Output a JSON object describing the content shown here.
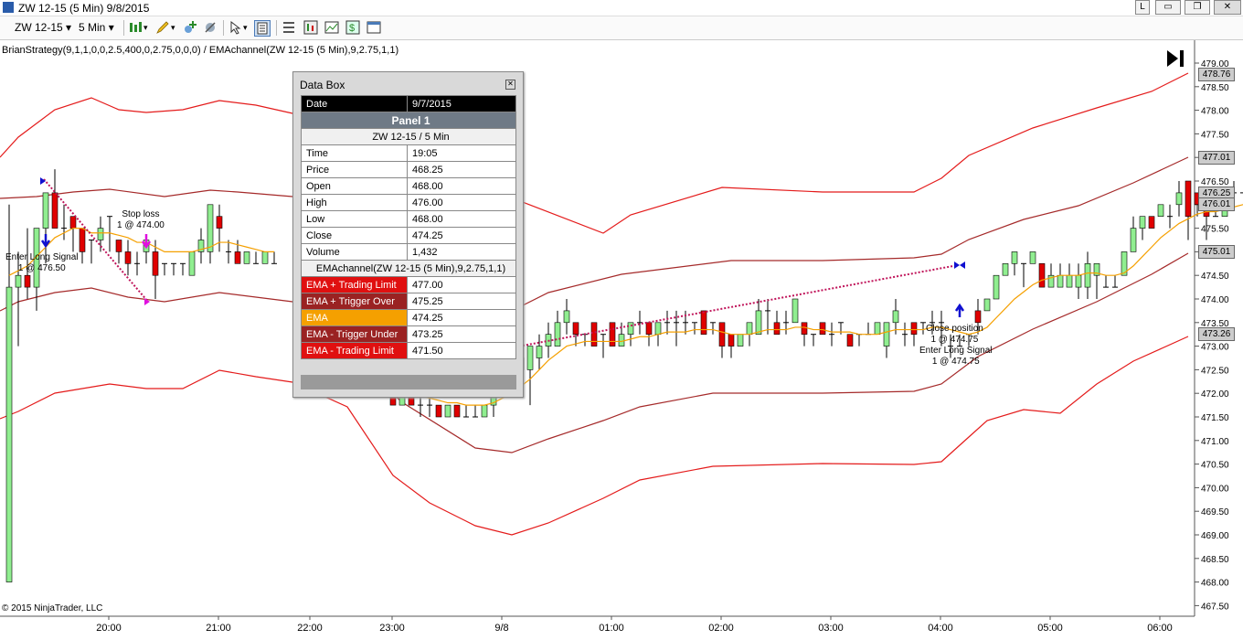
{
  "window": {
    "title": "ZW 12-15 (5 Min)  9/8/2015",
    "buttons": [
      "L",
      "▭",
      "❐",
      "✕"
    ]
  },
  "toolbar": {
    "instrument": "ZW 12-15",
    "interval": "5 Min"
  },
  "strategy_label": "BrianStrategy(9,1,1,0,0,2.5,400,0,2.75,0,0,0) / EMAchannel(ZW 12-15 (5 Min),9,2.75,1,1)",
  "copyright": "© 2015 NinjaTrader, LLC",
  "price_axis": {
    "ticks": [
      "479.00",
      "478.50",
      "478.00",
      "477.50",
      "477.00",
      "476.50",
      "476.00",
      "475.50",
      "475.00",
      "474.50",
      "474.00",
      "473.50",
      "473.00",
      "472.50",
      "472.00",
      "471.50",
      "471.00",
      "470.50",
      "470.00",
      "469.50",
      "469.00",
      "468.50",
      "468.00",
      "467.50"
    ],
    "tags": [
      {
        "label": "478.76",
        "price": 478.76
      },
      {
        "label": "477.01",
        "price": 477.01
      },
      {
        "label": "476.25",
        "price": 476.25
      },
      {
        "label": "476.01",
        "price": 476.01
      },
      {
        "label": "475.01",
        "price": 475.01
      },
      {
        "label": "473.26",
        "price": 473.26
      }
    ]
  },
  "time_axis": {
    "labels": [
      "20:00",
      "21:00",
      "22:00",
      "23:00",
      "9/8",
      "01:00",
      "02:00",
      "03:00",
      "04:00",
      "05:00",
      "06:00"
    ]
  },
  "annotations": [
    {
      "id": "stop-loss",
      "lines": [
        "Stop loss",
        "1 @ 474.00"
      ]
    },
    {
      "id": "enter-long-1",
      "lines": [
        "Enter Long Signal",
        "1 @ 476.50"
      ]
    },
    {
      "id": "close-position",
      "lines": [
        "Close position",
        "1 @ 474.75"
      ]
    },
    {
      "id": "enter-long-2",
      "lines": [
        "Enter Long Signal",
        "1 @ 474.75"
      ]
    }
  ],
  "databox": {
    "title": "Data Box",
    "date_label": "Date",
    "date_value": "9/7/2015",
    "panel": "Panel 1",
    "instrument": "ZW 12-15 / 5 Min",
    "rows": [
      {
        "label": "Time",
        "value": "19:05"
      },
      {
        "label": "Price",
        "value": "468.25"
      },
      {
        "label": "Open",
        "value": "468.00"
      },
      {
        "label": "High",
        "value": "476.00"
      },
      {
        "label": "Low",
        "value": "468.00"
      },
      {
        "label": "Close",
        "value": "474.25"
      },
      {
        "label": "Volume",
        "value": "1,432"
      }
    ],
    "indicator": "EMAchannel(ZW 12-15 (5 Min),9,2.75,1,1)",
    "indicator_rows": [
      {
        "label": "EMA + Trading Limit",
        "value": "477.00",
        "color": "#e01010"
      },
      {
        "label": "EMA + Trigger Over",
        "value": "475.25",
        "color": "#9a2222"
      },
      {
        "label": "EMA",
        "value": "474.25",
        "color": "#f5a000"
      },
      {
        "label": "EMA - Trigger Under",
        "value": "473.25",
        "color": "#9a2222"
      },
      {
        "label": "EMA - Trading Limit",
        "value": "471.50",
        "color": "#e01010"
      }
    ]
  },
  "colors": {
    "up_bar": "#90ee90",
    "down_bar": "#e00000",
    "ema": "#f5a000",
    "trigger_band": "#a52a2a",
    "limit_band": "#e41b1b"
  },
  "chart_data": {
    "type": "candlestick",
    "ylim": [
      467.4,
      479.2
    ],
    "y_ticks": [
      479.0,
      478.5,
      478.0,
      477.5,
      477.0,
      476.5,
      476.0,
      475.5,
      475.0,
      474.5,
      474.0,
      473.5,
      473.0,
      472.5,
      472.0,
      471.5,
      471.0,
      470.5,
      470.0,
      469.5,
      469.0,
      468.5,
      468.0,
      467.5
    ],
    "x_labels": [
      "20:00",
      "21:00",
      "22:00",
      "23:00",
      "9/8",
      "01:00",
      "02:00",
      "03:00",
      "04:00",
      "05:00",
      "06:00"
    ],
    "candles_left": [
      {
        "o": 468.0,
        "h": 476.0,
        "l": 468.0,
        "c": 474.25
      },
      {
        "o": 474.25,
        "h": 475.0,
        "l": 473.0,
        "c": 474.5
      },
      {
        "o": 474.5,
        "h": 475.5,
        "l": 474.0,
        "c": 474.25
      },
      {
        "o": 474.25,
        "h": 475.5,
        "l": 473.75,
        "c": 475.5
      },
      {
        "o": 475.5,
        "h": 476.25,
        "l": 474.75,
        "c": 476.25
      },
      {
        "o": 476.25,
        "h": 476.75,
        "l": 475.75,
        "c": 475.5
      },
      {
        "o": 475.5,
        "h": 476.0,
        "l": 475.25,
        "c": 475.5
      },
      {
        "o": 475.75,
        "h": 475.75,
        "l": 475.0,
        "c": 475.5
      },
      {
        "o": 475.5,
        "h": 475.5,
        "l": 474.75,
        "c": 475.0
      },
      {
        "o": 475.25,
        "h": 475.25,
        "l": 474.75,
        "c": 475.25
      },
      {
        "o": 475.25,
        "h": 475.75,
        "l": 475.0,
        "c": 475.5
      },
      {
        "o": 475.75,
        "h": 475.75,
        "l": 475.0,
        "c": 475.75
      },
      {
        "o": 475.25,
        "h": 475.25,
        "l": 474.75,
        "c": 475.0
      },
      {
        "o": 475.0,
        "h": 475.25,
        "l": 474.5,
        "c": 474.75
      },
      {
        "o": 474.75,
        "h": 475.0,
        "l": 474.5,
        "c": 474.75
      },
      {
        "o": 475.0,
        "h": 475.25,
        "l": 474.75,
        "c": 475.25
      },
      {
        "o": 475.0,
        "h": 475.25,
        "l": 474.0,
        "c": 474.5
      },
      {
        "o": 474.75,
        "h": 474.75,
        "l": 474.5,
        "c": 474.75
      },
      {
        "o": 474.75,
        "h": 474.75,
        "l": 474.5,
        "c": 474.75
      },
      {
        "o": 474.75,
        "h": 474.75,
        "l": 474.5,
        "c": 474.75
      },
      {
        "o": 474.5,
        "h": 475.0,
        "l": 474.5,
        "c": 475.0
      },
      {
        "o": 475.0,
        "h": 475.5,
        "l": 474.75,
        "c": 475.25
      },
      {
        "o": 475.0,
        "h": 476.0,
        "l": 474.75,
        "c": 476.0
      },
      {
        "o": 475.75,
        "h": 476.0,
        "l": 475.0,
        "c": 475.5
      },
      {
        "o": 475.0,
        "h": 475.25,
        "l": 474.75,
        "c": 475.0
      },
      {
        "o": 475.0,
        "h": 475.25,
        "l": 474.75,
        "c": 474.75
      },
      {
        "o": 474.75,
        "h": 475.0,
        "l": 474.75,
        "c": 475.0
      },
      {
        "o": 474.75,
        "h": 475.0,
        "l": 474.75,
        "c": 474.75
      },
      {
        "o": 474.75,
        "h": 475.0,
        "l": 474.75,
        "c": 475.0
      },
      {
        "o": 474.75,
        "h": 475.0,
        "l": 474.75,
        "c": 474.75
      }
    ],
    "candles_right": [
      {
        "o": 472.0,
        "h": 472.25,
        "l": 471.75,
        "c": 471.75
      },
      {
        "o": 471.75,
        "h": 472.25,
        "l": 471.75,
        "c": 472.0
      },
      {
        "o": 472.0,
        "h": 472.25,
        "l": 471.75,
        "c": 471.75
      },
      {
        "o": 471.75,
        "h": 472.25,
        "l": 471.5,
        "c": 471.75
      },
      {
        "o": 471.75,
        "h": 472.0,
        "l": 471.5,
        "c": 471.75
      },
      {
        "o": 471.75,
        "h": 471.75,
        "l": 471.5,
        "c": 471.5
      },
      {
        "o": 471.5,
        "h": 471.75,
        "l": 471.5,
        "c": 471.75
      },
      {
        "o": 471.75,
        "h": 471.75,
        "l": 471.5,
        "c": 471.5
      },
      {
        "o": 471.5,
        "h": 471.75,
        "l": 471.5,
        "c": 471.5
      },
      {
        "o": 471.5,
        "h": 471.75,
        "l": 471.5,
        "c": 471.5
      },
      {
        "o": 471.5,
        "h": 471.75,
        "l": 471.5,
        "c": 471.75
      },
      {
        "o": 471.75,
        "h": 472.0,
        "l": 471.5,
        "c": 472.0
      },
      {
        "o": 472.25,
        "h": 472.5,
        "l": 472.0,
        "c": 472.25
      },
      {
        "o": 472.25,
        "h": 472.75,
        "l": 472.0,
        "c": 472.5
      },
      {
        "o": 472.5,
        "h": 473.0,
        "l": 472.25,
        "c": 472.75
      },
      {
        "o": 472.5,
        "h": 473.0,
        "l": 471.75,
        "c": 473.0
      },
      {
        "o": 472.75,
        "h": 473.25,
        "l": 472.5,
        "c": 473.0
      },
      {
        "o": 473.0,
        "h": 473.5,
        "l": 472.75,
        "c": 473.25
      },
      {
        "o": 473.0,
        "h": 473.75,
        "l": 473.0,
        "c": 473.5
      },
      {
        "o": 473.5,
        "h": 474.0,
        "l": 473.25,
        "c": 473.75
      },
      {
        "o": 473.5,
        "h": 473.5,
        "l": 473.0,
        "c": 473.25
      },
      {
        "o": 473.25,
        "h": 473.25,
        "l": 473.0,
        "c": 473.25
      },
      {
        "o": 473.5,
        "h": 473.5,
        "l": 473.0,
        "c": 473.0
      },
      {
        "o": 473.25,
        "h": 473.25,
        "l": 472.75,
        "c": 473.25
      },
      {
        "o": 473.5,
        "h": 473.5,
        "l": 473.0,
        "c": 473.0
      },
      {
        "o": 473.0,
        "h": 473.5,
        "l": 473.0,
        "c": 473.25
      },
      {
        "o": 473.25,
        "h": 473.5,
        "l": 473.0,
        "c": 473.5
      },
      {
        "o": 473.5,
        "h": 473.75,
        "l": 473.25,
        "c": 473.5
      },
      {
        "o": 473.5,
        "h": 473.5,
        "l": 473.0,
        "c": 473.25
      },
      {
        "o": 473.25,
        "h": 473.5,
        "l": 473.0,
        "c": 473.5
      },
      {
        "o": 473.5,
        "h": 473.75,
        "l": 473.25,
        "c": 473.5
      },
      {
        "o": 473.5,
        "h": 473.75,
        "l": 473.0,
        "c": 473.5
      },
      {
        "o": 473.5,
        "h": 473.75,
        "l": 473.25,
        "c": 473.5
      },
      {
        "o": 473.5,
        "h": 473.5,
        "l": 473.25,
        "c": 473.5
      },
      {
        "o": 473.75,
        "h": 473.75,
        "l": 473.25,
        "c": 473.25
      },
      {
        "o": 473.5,
        "h": 473.5,
        "l": 473.25,
        "c": 473.5
      },
      {
        "o": 473.5,
        "h": 473.5,
        "l": 472.75,
        "c": 473.0
      },
      {
        "o": 473.25,
        "h": 473.25,
        "l": 472.75,
        "c": 473.0
      },
      {
        "o": 473.0,
        "h": 473.25,
        "l": 473.0,
        "c": 473.25
      },
      {
        "o": 473.25,
        "h": 473.5,
        "l": 473.0,
        "c": 473.5
      },
      {
        "o": 473.25,
        "h": 474.0,
        "l": 473.25,
        "c": 473.75
      },
      {
        "o": 473.75,
        "h": 474.0,
        "l": 473.25,
        "c": 473.75
      },
      {
        "o": 473.5,
        "h": 473.75,
        "l": 473.25,
        "c": 473.25
      },
      {
        "o": 473.5,
        "h": 473.75,
        "l": 473.25,
        "c": 473.5
      },
      {
        "o": 473.5,
        "h": 474.0,
        "l": 473.5,
        "c": 474.0
      },
      {
        "o": 473.5,
        "h": 473.5,
        "l": 473.0,
        "c": 473.25
      },
      {
        "o": 473.25,
        "h": 473.25,
        "l": 473.0,
        "c": 473.25
      },
      {
        "o": 473.5,
        "h": 473.5,
        "l": 473.25,
        "c": 473.25
      },
      {
        "o": 473.25,
        "h": 473.5,
        "l": 473.0,
        "c": 473.25
      },
      {
        "o": 473.5,
        "h": 473.5,
        "l": 473.25,
        "c": 473.5
      },
      {
        "o": 473.25,
        "h": 473.25,
        "l": 473.0,
        "c": 473.0
      },
      {
        "o": 473.25,
        "h": 473.25,
        "l": 473.0,
        "c": 473.25
      },
      {
        "o": 473.25,
        "h": 473.5,
        "l": 473.25,
        "c": 473.25
      },
      {
        "o": 473.25,
        "h": 473.5,
        "l": 473.25,
        "c": 473.5
      },
      {
        "o": 473.0,
        "h": 473.5,
        "l": 472.75,
        "c": 473.5
      },
      {
        "o": 473.5,
        "h": 474.0,
        "l": 473.25,
        "c": 473.75
      },
      {
        "o": 473.25,
        "h": 473.5,
        "l": 473.0,
        "c": 473.25
      },
      {
        "o": 473.5,
        "h": 473.5,
        "l": 473.0,
        "c": 473.25
      },
      {
        "o": 473.5,
        "h": 473.5,
        "l": 473.25,
        "c": 473.5
      },
      {
        "o": 473.5,
        "h": 473.75,
        "l": 473.25,
        "c": 473.5
      },
      {
        "o": 473.5,
        "h": 473.75,
        "l": 473.0,
        "c": 473.5
      },
      {
        "o": 473.0,
        "h": 473.25,
        "l": 472.75,
        "c": 473.0
      },
      {
        "o": 473.0,
        "h": 473.25,
        "l": 473.0,
        "c": 473.0
      },
      {
        "o": 473.25,
        "h": 473.25,
        "l": 473.0,
        "c": 473.25
      },
      {
        "o": 473.75,
        "h": 474.0,
        "l": 473.25,
        "c": 473.5
      },
      {
        "o": 473.75,
        "h": 474.0,
        "l": 473.75,
        "c": 474.0
      },
      {
        "o": 474.0,
        "h": 474.5,
        "l": 474.0,
        "c": 474.5
      },
      {
        "o": 474.5,
        "h": 474.75,
        "l": 474.5,
        "c": 474.75
      },
      {
        "o": 474.75,
        "h": 475.0,
        "l": 474.5,
        "c": 475.0
      },
      {
        "o": 474.75,
        "h": 474.75,
        "l": 474.25,
        "c": 474.75
      },
      {
        "o": 474.75,
        "h": 475.0,
        "l": 474.75,
        "c": 475.0
      },
      {
        "o": 474.75,
        "h": 474.75,
        "l": 474.25,
        "c": 474.25
      },
      {
        "o": 474.25,
        "h": 474.75,
        "l": 474.25,
        "c": 474.5
      },
      {
        "o": 474.25,
        "h": 474.75,
        "l": 474.25,
        "c": 474.5
      },
      {
        "o": 474.25,
        "h": 474.75,
        "l": 474.25,
        "c": 474.5
      },
      {
        "o": 474.25,
        "h": 474.75,
        "l": 474.0,
        "c": 474.5
      },
      {
        "o": 474.25,
        "h": 475.0,
        "l": 474.0,
        "c": 474.75
      },
      {
        "o": 474.5,
        "h": 474.75,
        "l": 474.0,
        "c": 474.75
      },
      {
        "o": 474.25,
        "h": 474.5,
        "l": 474.25,
        "c": 474.25
      },
      {
        "o": 474.25,
        "h": 474.5,
        "l": 474.25,
        "c": 474.25
      },
      {
        "o": 474.5,
        "h": 475.0,
        "l": 474.5,
        "c": 475.0
      },
      {
        "o": 475.0,
        "h": 475.75,
        "l": 475.0,
        "c": 475.5
      },
      {
        "o": 475.5,
        "h": 475.75,
        "l": 475.25,
        "c": 475.75
      },
      {
        "o": 475.75,
        "h": 475.75,
        "l": 475.5,
        "c": 475.5
      },
      {
        "o": 475.75,
        "h": 476.0,
        "l": 475.75,
        "c": 476.0
      },
      {
        "o": 475.75,
        "h": 476.0,
        "l": 475.5,
        "c": 475.75
      },
      {
        "o": 476.0,
        "h": 476.5,
        "l": 475.75,
        "c": 476.25
      },
      {
        "o": 476.5,
        "h": 476.5,
        "l": 475.25,
        "c": 475.75
      },
      {
        "o": 476.25,
        "h": 476.25,
        "l": 475.75,
        "c": 476.0
      },
      {
        "o": 476.25,
        "h": 476.25,
        "l": 475.25,
        "c": 475.75
      },
      {
        "o": 475.75,
        "h": 476.0,
        "l": 475.75,
        "c": 475.75
      },
      {
        "o": 475.75,
        "h": 476.25,
        "l": 475.75,
        "c": 476.0
      },
      {
        "o": 476.25,
        "h": 476.5,
        "l": 476.25,
        "c": 476.25
      },
      {
        "o": 476.25,
        "h": 476.25,
        "l": 476.25,
        "c": 476.25
      },
      {
        "o": 476.25,
        "h": 476.25,
        "l": 476.25,
        "c": 476.25
      }
    ],
    "ema_left": [
      474.5,
      474.6,
      474.7,
      474.9,
      475.1,
      475.3,
      475.4,
      475.5,
      475.5,
      475.4,
      475.4,
      475.4,
      475.35,
      475.3,
      475.2,
      475.2,
      475.1,
      475.0,
      475.0,
      475.0,
      475.0,
      475.05,
      475.1,
      475.2,
      475.2,
      475.15,
      475.1,
      475.05,
      475.0,
      475.0
    ],
    "ema_right": [
      472.2,
      472.1,
      472.0,
      471.95,
      471.9,
      471.85,
      471.8,
      471.8,
      471.75,
      471.75,
      471.75,
      471.8,
      471.9,
      472.0,
      472.15,
      472.3,
      472.5,
      472.7,
      472.85,
      473.0,
      473.05,
      473.1,
      473.1,
      473.1,
      473.1,
      473.1,
      473.15,
      473.2,
      473.2,
      473.25,
      473.3,
      473.3,
      473.3,
      473.35,
      473.35,
      473.35,
      473.3,
      473.25,
      473.25,
      473.25,
      473.3,
      473.35,
      473.35,
      473.35,
      473.4,
      473.4,
      473.35,
      473.35,
      473.3,
      473.3,
      473.3,
      473.25,
      473.25,
      473.25,
      473.3,
      473.35,
      473.35,
      473.35,
      473.35,
      473.4,
      473.4,
      473.35,
      473.3,
      473.25,
      473.3,
      473.4,
      473.6,
      473.8,
      474.0,
      474.15,
      474.3,
      474.4,
      474.45,
      474.5,
      474.5,
      474.5,
      474.55,
      474.55,
      474.5,
      474.5,
      474.55,
      474.7,
      474.9,
      475.1,
      475.3,
      475.45,
      475.6,
      475.7,
      475.8,
      475.85,
      475.85,
      475.9,
      475.95,
      476.0,
      476.05
    ],
    "bands": {
      "limit_upper": [
        [
          477.5,
          0
        ],
        [
          477.5,
          0.06
        ],
        [
          478.4,
          0.11
        ],
        [
          478.5,
          0.2
        ],
        [
          478.2,
          0.28
        ],
        [
          478.1,
          0.35
        ]
      ],
      "note": "band curves traced from screenshot"
    }
  }
}
